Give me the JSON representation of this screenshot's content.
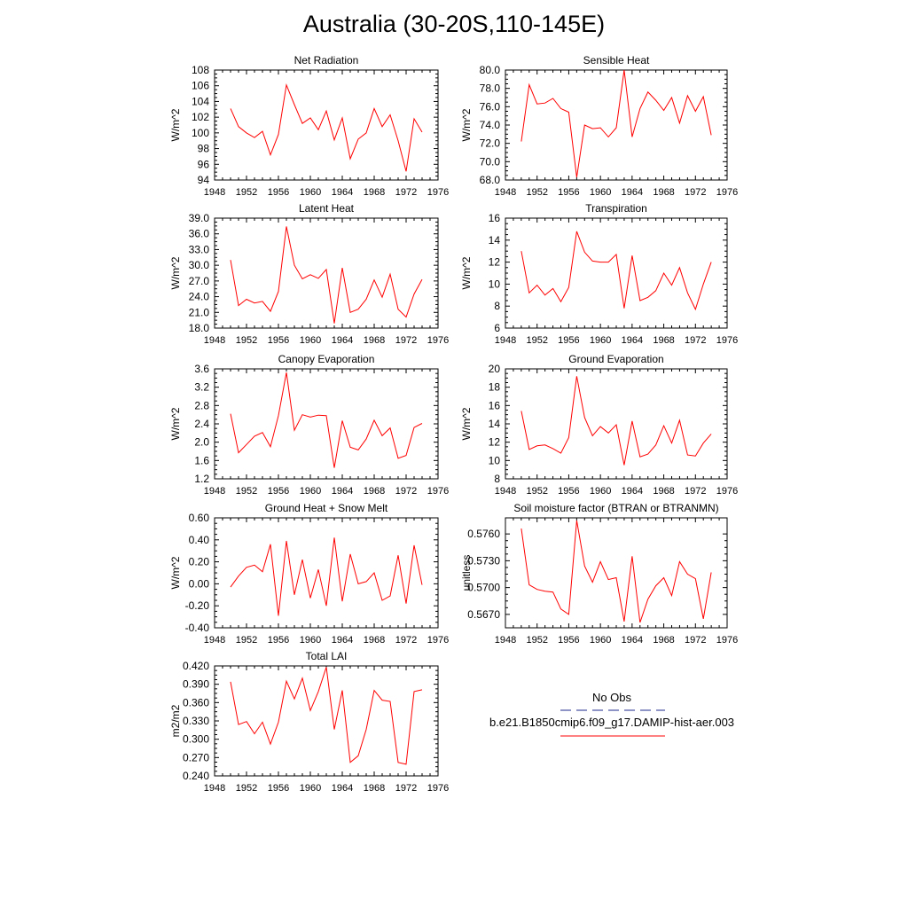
{
  "page": {
    "title": "Australia (30-20S,110-145E)"
  },
  "legend": {
    "items": [
      {
        "label": "No Obs",
        "color": "#1f2a8c",
        "dash": true
      },
      {
        "label": "b.e21.B1850cmip6.f09_g17.DAMIP-hist-aer.003",
        "color": "#ff0000",
        "dash": false
      }
    ]
  },
  "colors": {
    "model": "#ff0000",
    "obs": "#1f2a8c"
  },
  "chart_data": [
    {
      "type": "line",
      "title": "Net Radiation",
      "ylabel": "W/m^2",
      "xlim": [
        1948,
        1976
      ],
      "ylim": [
        94,
        108
      ],
      "xticks": [
        "1948",
        "1952",
        "1956",
        "1960",
        "1964",
        "1968",
        "1972",
        "1976"
      ],
      "yticks": [
        "94",
        "96",
        "98",
        "100",
        "102",
        "104",
        "106",
        "108"
      ],
      "series": [
        {
          "x": [
            1950,
            1951,
            1952,
            1953,
            1954,
            1955,
            1956,
            1957,
            1958,
            1959,
            1960,
            1961,
            1962,
            1963,
            1964,
            1965,
            1966,
            1967,
            1968,
            1969,
            1970,
            1971,
            1972,
            1973,
            1974
          ],
          "values": [
            103.1,
            100.8,
            100.0,
            99.4,
            100.2,
            97.2,
            99.8,
            106.1,
            103.6,
            101.2,
            101.9,
            100.4,
            102.8,
            99.1,
            101.9,
            96.7,
            99.2,
            100.0,
            103.1,
            100.8,
            102.3,
            99.0,
            95.1,
            101.8,
            100.1
          ]
        }
      ]
    },
    {
      "type": "line",
      "title": "Sensible Heat",
      "ylabel": "W/m^2",
      "xlim": [
        1948,
        1976
      ],
      "ylim": [
        68,
        80
      ],
      "xticks": [
        "1948",
        "1952",
        "1956",
        "1960",
        "1964",
        "1968",
        "1972",
        "1976"
      ],
      "yticks": [
        "68.0",
        "70.0",
        "72.0",
        "74.0",
        "76.0",
        "78.0",
        "80.0"
      ],
      "series": [
        {
          "x": [
            1950,
            1951,
            1952,
            1953,
            1954,
            1955,
            1956,
            1957,
            1958,
            1959,
            1960,
            1961,
            1962,
            1963,
            1964,
            1965,
            1966,
            1967,
            1968,
            1969,
            1970,
            1971,
            1972,
            1973,
            1974
          ],
          "values": [
            72.2,
            78.4,
            76.3,
            76.4,
            76.9,
            75.8,
            75.4,
            68.3,
            74.0,
            73.6,
            73.7,
            72.7,
            73.7,
            80.0,
            72.7,
            75.8,
            77.6,
            76.7,
            75.6,
            77.0,
            74.2,
            77.2,
            75.5,
            77.1,
            72.9
          ]
        }
      ]
    },
    {
      "type": "line",
      "title": "Latent Heat",
      "ylabel": "W/m^2",
      "xlim": [
        1948,
        1976
      ],
      "ylim": [
        18,
        39
      ],
      "xticks": [
        "1948",
        "1952",
        "1956",
        "1960",
        "1964",
        "1968",
        "1972",
        "1976"
      ],
      "yticks": [
        "18.0",
        "21.0",
        "24.0",
        "27.0",
        "30.0",
        "33.0",
        "36.0",
        "39.0"
      ],
      "series": [
        {
          "x": [
            1950,
            1951,
            1952,
            1953,
            1954,
            1955,
            1956,
            1957,
            1958,
            1959,
            1960,
            1961,
            1962,
            1963,
            1964,
            1965,
            1966,
            1967,
            1968,
            1969,
            1970,
            1971,
            1972,
            1973,
            1974
          ],
          "values": [
            31.0,
            22.3,
            23.5,
            22.8,
            23.1,
            21.2,
            25.0,
            37.4,
            30.0,
            27.4,
            28.2,
            27.5,
            29.2,
            18.9,
            29.5,
            21.0,
            21.6,
            23.5,
            27.2,
            23.9,
            28.3,
            21.6,
            20.1,
            24.5,
            27.3
          ]
        }
      ]
    },
    {
      "type": "line",
      "title": "Transpiration",
      "ylabel": "W/m^2",
      "xlim": [
        1948,
        1976
      ],
      "ylim": [
        6,
        16
      ],
      "xticks": [
        "1948",
        "1952",
        "1956",
        "1960",
        "1964",
        "1968",
        "1972",
        "1976"
      ],
      "yticks": [
        "6",
        "8",
        "10",
        "12",
        "14",
        "16"
      ],
      "series": [
        {
          "x": [
            1950,
            1951,
            1952,
            1953,
            1954,
            1955,
            1956,
            1957,
            1958,
            1959,
            1960,
            1961,
            1962,
            1963,
            1964,
            1965,
            1966,
            1967,
            1968,
            1969,
            1970,
            1971,
            1972,
            1973,
            1974
          ],
          "values": [
            13.0,
            9.2,
            9.9,
            9.0,
            9.6,
            8.4,
            9.7,
            14.8,
            12.9,
            12.1,
            12.0,
            12.0,
            12.7,
            7.8,
            12.6,
            8.5,
            8.8,
            9.4,
            11.0,
            9.9,
            11.5,
            9.2,
            7.7,
            10.0,
            12.0
          ]
        }
      ]
    },
    {
      "type": "line",
      "title": "Canopy Evaporation",
      "ylabel": "W/m^2",
      "xlim": [
        1948,
        1976
      ],
      "ylim": [
        1.2,
        3.6
      ],
      "xticks": [
        "1948",
        "1952",
        "1956",
        "1960",
        "1964",
        "1968",
        "1972",
        "1976"
      ],
      "yticks": [
        "1.2",
        "1.6",
        "2.0",
        "2.4",
        "2.8",
        "3.2",
        "3.6"
      ],
      "series": [
        {
          "x": [
            1950,
            1951,
            1952,
            1953,
            1954,
            1955,
            1956,
            1957,
            1958,
            1959,
            1960,
            1961,
            1962,
            1963,
            1964,
            1965,
            1966,
            1967,
            1968,
            1969,
            1970,
            1971,
            1972,
            1973,
            1974
          ],
          "values": [
            2.62,
            1.77,
            1.95,
            2.13,
            2.21,
            1.9,
            2.58,
            3.52,
            2.26,
            2.6,
            2.55,
            2.59,
            2.58,
            1.44,
            2.47,
            1.89,
            1.83,
            2.07,
            2.48,
            2.14,
            2.31,
            1.65,
            1.71,
            2.32,
            2.41
          ]
        }
      ]
    },
    {
      "type": "line",
      "title": "Ground Evaporation",
      "ylabel": "W/m^2",
      "xlim": [
        1948,
        1976
      ],
      "ylim": [
        8,
        20
      ],
      "xticks": [
        "1948",
        "1952",
        "1956",
        "1960",
        "1964",
        "1968",
        "1972",
        "1976"
      ],
      "yticks": [
        "8",
        "10",
        "12",
        "14",
        "16",
        "18",
        "20"
      ],
      "series": [
        {
          "x": [
            1950,
            1951,
            1952,
            1953,
            1954,
            1955,
            1956,
            1957,
            1958,
            1959,
            1960,
            1961,
            1962,
            1963,
            1964,
            1965,
            1966,
            1967,
            1968,
            1969,
            1970,
            1971,
            1972,
            1973,
            1974
          ],
          "values": [
            15.4,
            11.2,
            11.6,
            11.7,
            11.3,
            10.8,
            12.5,
            19.2,
            14.7,
            12.7,
            13.7,
            13.0,
            13.9,
            9.5,
            14.3,
            10.4,
            10.7,
            11.7,
            13.8,
            11.9,
            14.4,
            10.6,
            10.5,
            11.9,
            12.9
          ]
        }
      ]
    },
    {
      "type": "line",
      "title": "Ground Heat + Snow Melt",
      "ylabel": "W/m^2",
      "xlim": [
        1948,
        1976
      ],
      "ylim": [
        -0.4,
        0.6
      ],
      "xticks": [
        "1948",
        "1952",
        "1956",
        "1960",
        "1964",
        "1968",
        "1972",
        "1976"
      ],
      "yticks": [
        "-0.40",
        "-0.20",
        "0.00",
        "0.20",
        "0.40",
        "0.60"
      ],
      "series": [
        {
          "x": [
            1950,
            1951,
            1952,
            1953,
            1954,
            1955,
            1956,
            1957,
            1958,
            1959,
            1960,
            1961,
            1962,
            1963,
            1964,
            1965,
            1966,
            1967,
            1968,
            1969,
            1970,
            1971,
            1972,
            1973,
            1974
          ],
          "values": [
            -0.03,
            0.07,
            0.15,
            0.17,
            0.11,
            0.36,
            -0.29,
            0.39,
            -0.1,
            0.22,
            -0.13,
            0.13,
            -0.2,
            0.42,
            -0.16,
            0.27,
            0.0,
            0.02,
            0.1,
            -0.15,
            -0.11,
            0.26,
            -0.18,
            0.35,
            -0.01
          ]
        }
      ]
    },
    {
      "type": "line",
      "title": "Soil moisture factor (BTRAN or BTRANMN)",
      "ylabel": "unitless",
      "xlim": [
        1948,
        1976
      ],
      "ylim": [
        0.5655,
        0.5778
      ],
      "xticks": [
        "1948",
        "1952",
        "1956",
        "1960",
        "1964",
        "1968",
        "1972",
        "1976"
      ],
      "yticks": [
        "0.5670",
        "0.5700",
        "0.5730",
        "0.5760"
      ],
      "series": [
        {
          "x": [
            1950,
            1951,
            1952,
            1953,
            1954,
            1955,
            1956,
            1957,
            1958,
            1959,
            1960,
            1961,
            1962,
            1963,
            1964,
            1965,
            1966,
            1967,
            1968,
            1969,
            1970,
            1971,
            1972,
            1973,
            1974
          ],
          "values": [
            0.5766,
            0.5703,
            0.5698,
            0.5696,
            0.5695,
            0.5676,
            0.567,
            0.5775,
            0.5724,
            0.5706,
            0.5729,
            0.5709,
            0.5711,
            0.5662,
            0.5735,
            0.5661,
            0.5687,
            0.5702,
            0.5711,
            0.5691,
            0.5729,
            0.5715,
            0.571,
            0.5665,
            0.5717
          ]
        }
      ]
    },
    {
      "type": "line",
      "title": "Total LAI",
      "ylabel": "m2/m2",
      "xlim": [
        1948,
        1976
      ],
      "ylim": [
        0.24,
        0.42
      ],
      "xticks": [
        "1948",
        "1952",
        "1956",
        "1960",
        "1964",
        "1968",
        "1972",
        "1976"
      ],
      "yticks": [
        "0.240",
        "0.270",
        "0.300",
        "0.330",
        "0.360",
        "0.390",
        "0.420"
      ],
      "series": [
        {
          "x": [
            1950,
            1951,
            1952,
            1953,
            1954,
            1955,
            1956,
            1957,
            1958,
            1959,
            1960,
            1961,
            1962,
            1963,
            1964,
            1965,
            1966,
            1967,
            1968,
            1969,
            1970,
            1971,
            1972,
            1973,
            1974
          ],
          "values": [
            0.394,
            0.324,
            0.329,
            0.309,
            0.328,
            0.292,
            0.328,
            0.395,
            0.366,
            0.4,
            0.347,
            0.378,
            0.418,
            0.316,
            0.38,
            0.262,
            0.273,
            0.316,
            0.38,
            0.364,
            0.362,
            0.262,
            0.259,
            0.378,
            0.381
          ]
        }
      ]
    }
  ]
}
